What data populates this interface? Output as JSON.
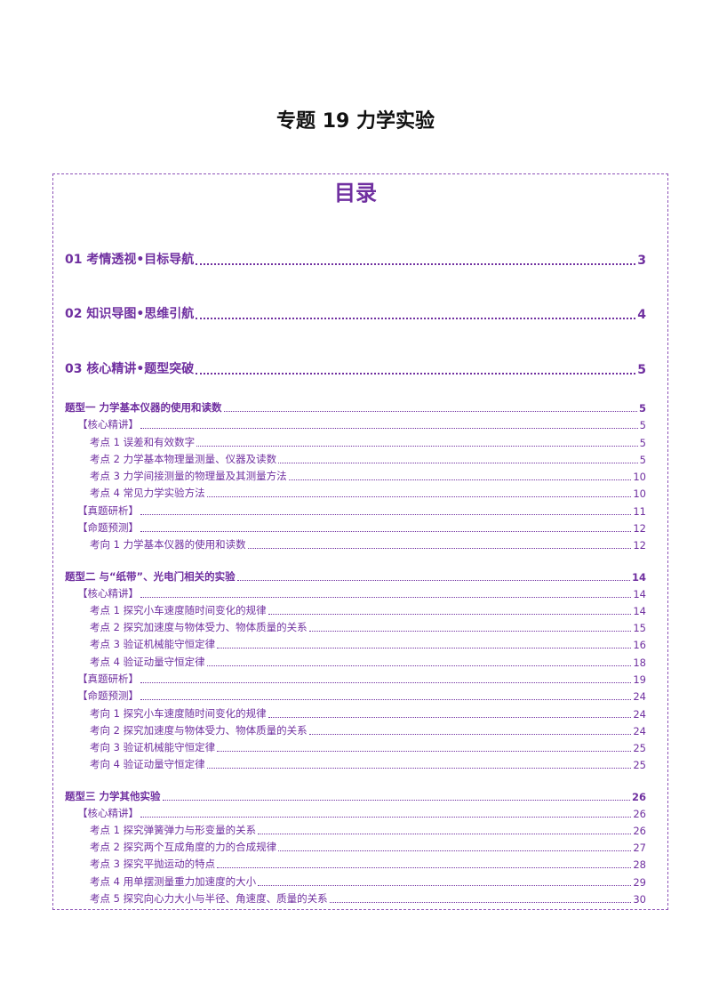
{
  "document": {
    "title": "专题 19  力学实验",
    "toc_heading": "目录"
  },
  "toc": [
    {
      "level": "lvl1",
      "label": "01 考情透视•目标导航",
      "page": "3"
    },
    {
      "level": "lvl1",
      "label": "02 知识导图•思维引航",
      "page": "4"
    },
    {
      "level": "lvl1",
      "label": "03 核心精讲•题型突破",
      "page": "5"
    },
    {
      "level": "lvl2",
      "label": "题型一    力学基本仪器的使用和读数",
      "page": "5"
    },
    {
      "level": "lvl3",
      "label": "【核心精讲】",
      "page": "5"
    },
    {
      "level": "lvl4",
      "label": "考点 1  误差和有效数字",
      "page": "5"
    },
    {
      "level": "lvl4",
      "label": "考点 2  力学基本物理量测量、仪器及读数",
      "page": "5"
    },
    {
      "level": "lvl4",
      "label": "考点 3  力学间接测量的物理量及其测量方法",
      "page": "10"
    },
    {
      "level": "lvl4",
      "label": "考点 4  常见力学实验方法",
      "page": "10"
    },
    {
      "level": "lvl3",
      "label": "【真题研析】",
      "page": "11"
    },
    {
      "level": "lvl3",
      "label": "【命题预测】",
      "page": "12"
    },
    {
      "level": "lvl4",
      "label": "考向 1    力学基本仪器的使用和读数",
      "page": "12"
    },
    {
      "level": "lvl2",
      "label": "题型二    与“纸带”、光电门相关的实验",
      "page": "14"
    },
    {
      "level": "lvl3",
      "label": "【核心精讲】",
      "page": "14"
    },
    {
      "level": "lvl4",
      "label": "考点 1  探究小车速度随时间变化的规律",
      "page": "14"
    },
    {
      "level": "lvl4",
      "label": "考点 2  探究加速度与物体受力、物体质量的关系",
      "page": "15"
    },
    {
      "level": "lvl4",
      "label": "考点 3  验证机械能守恒定律",
      "page": "16"
    },
    {
      "level": "lvl4",
      "label": "考点 4  验证动量守恒定律",
      "page": "18"
    },
    {
      "level": "lvl3",
      "label": "【真题研析】",
      "page": "19"
    },
    {
      "level": "lvl3",
      "label": "【命题预测】",
      "page": "24"
    },
    {
      "level": "lvl4",
      "label": "考向 1  探究小车速度随时间变化的规律",
      "page": "24"
    },
    {
      "level": "lvl4",
      "label": "考向 2  探究加速度与物体受力、物体质量的关系",
      "page": "24"
    },
    {
      "level": "lvl4",
      "label": "考向 3  验证机械能守恒定律",
      "page": "25"
    },
    {
      "level": "lvl4",
      "label": "考向 4  验证动量守恒定律",
      "page": "25"
    },
    {
      "level": "lvl2",
      "label": "题型三    力学其他实验",
      "page": "26"
    },
    {
      "level": "lvl3",
      "label": "【核心精讲】",
      "page": "26"
    },
    {
      "level": "lvl4",
      "label": "考点 1  探究弹簧弹力与形变量的关系",
      "page": "26"
    },
    {
      "level": "lvl4",
      "label": "考点 2  探究两个互成角度的力的合成规律",
      "page": "27"
    },
    {
      "level": "lvl4",
      "label": "考点 3  探究平抛运动的特点",
      "page": "28"
    },
    {
      "level": "lvl4",
      "label": "考点 4  用单摆测量重力加速度的大小",
      "page": "29"
    },
    {
      "level": "lvl4",
      "label": "考点 5  探究向心力大小与半径、角速度、质量的关系",
      "page": "30"
    }
  ]
}
